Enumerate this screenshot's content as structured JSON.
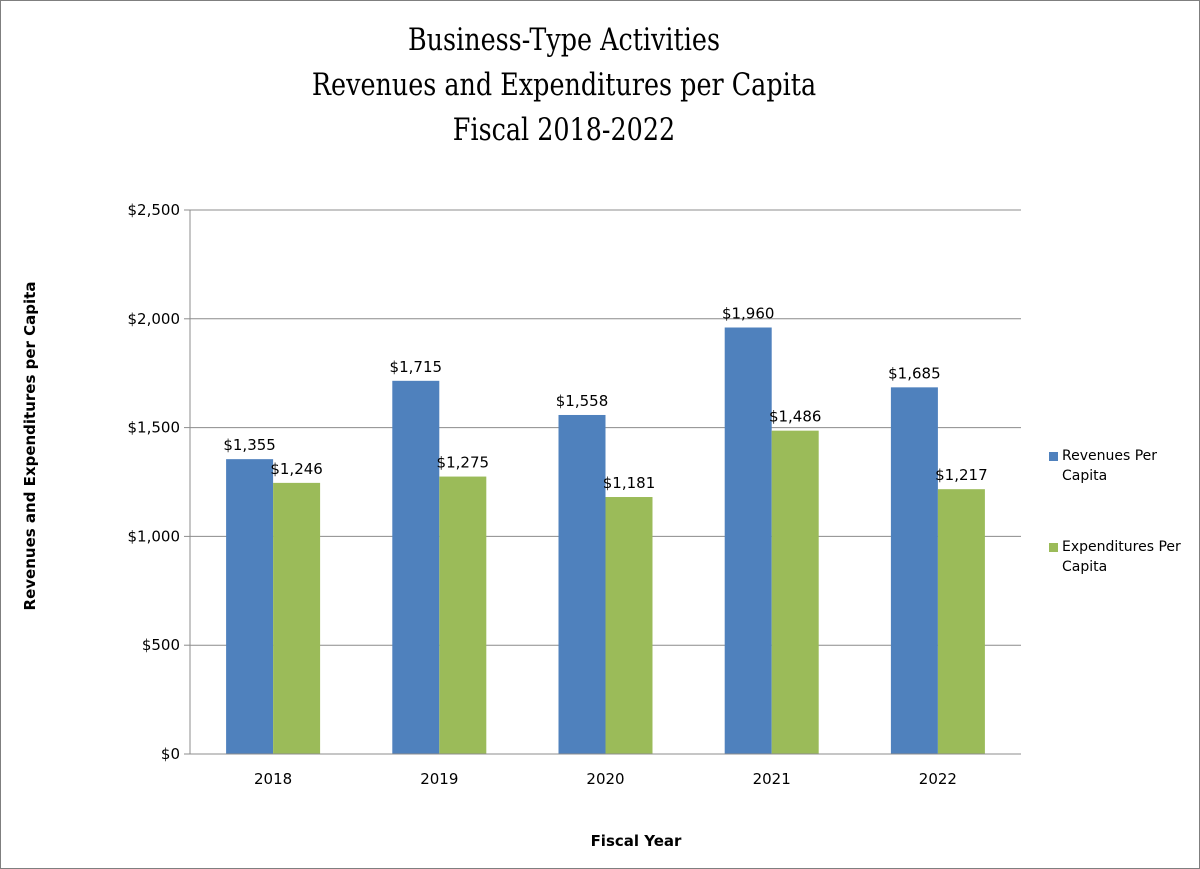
{
  "chart_data": {
    "type": "bar",
    "title_lines": [
      "Business-Type Activities",
      "Revenues and Expenditures per Capita",
      "Fiscal 2018-2022"
    ],
    "xlabel": "Fiscal Year",
    "ylabel": "Revenues and Expenditures per Capita",
    "categories": [
      "2018",
      "2019",
      "2020",
      "2021",
      "2022"
    ],
    "ylim": [
      0,
      2500
    ],
    "yticks": [
      0,
      500,
      1000,
      1500,
      2000,
      2500
    ],
    "ytick_labels": [
      "$0",
      "$500",
      "$1,000",
      "$1,500",
      "$2,000",
      "$2,500"
    ],
    "grid": true,
    "legend_position": "right",
    "series": [
      {
        "name": "Revenues Per Capita",
        "legend_lines": [
          "Revenues Per",
          "Capita"
        ],
        "color": "#4f81bd",
        "values": [
          1355,
          1715,
          1558,
          1960,
          1685
        ],
        "labels": [
          "$1,355",
          "$1,715",
          "$1,558",
          "$1,960",
          "$1,685"
        ]
      },
      {
        "name": "Expenditures Per Capita",
        "legend_lines": [
          "Expenditures Per",
          "Capita"
        ],
        "color": "#9bbb59",
        "values": [
          1246,
          1275,
          1181,
          1486,
          1217
        ],
        "labels": [
          "$1,246",
          "$1,275",
          "$1,181",
          "$1,486",
          "$1,217"
        ]
      }
    ]
  }
}
